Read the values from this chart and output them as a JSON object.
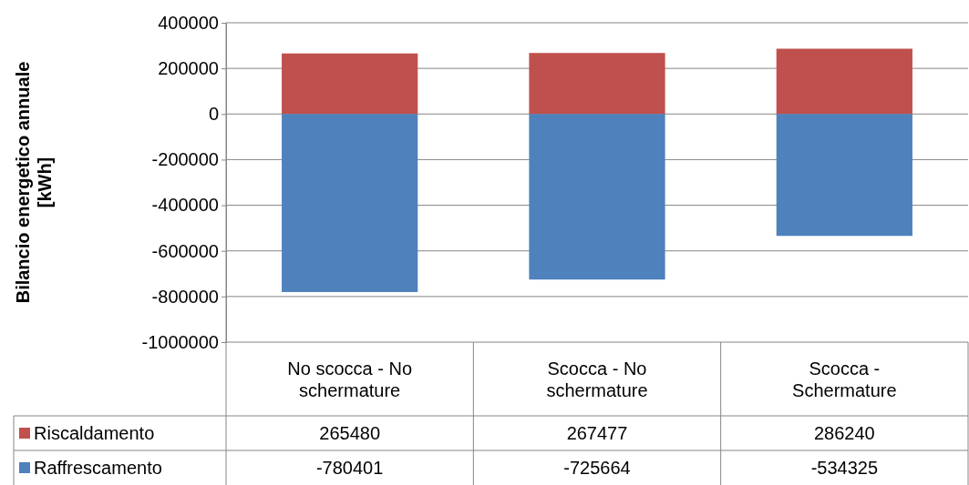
{
  "chart_data": {
    "type": "bar",
    "stacked": true,
    "ylabel": "Bilancio energetico annuale\n[kWh]",
    "categories": [
      "No scocca - No schermature",
      "Scocca - No schermature",
      "Scocca - Schermature"
    ],
    "series": [
      {
        "name": "Riscaldamento",
        "color": "#c0504d",
        "values": [
          265480,
          267477,
          286240
        ]
      },
      {
        "name": "Raffrescamento",
        "color": "#4f81bd",
        "values": [
          -780401,
          -725664,
          -534325
        ]
      }
    ],
    "ylim": [
      -1000000,
      400000
    ],
    "yticks": [
      -1000000,
      -800000,
      -600000,
      -400000,
      -200000,
      0,
      200000,
      400000
    ],
    "grid": "y",
    "legend": "bottom",
    "data_labels": true
  }
}
